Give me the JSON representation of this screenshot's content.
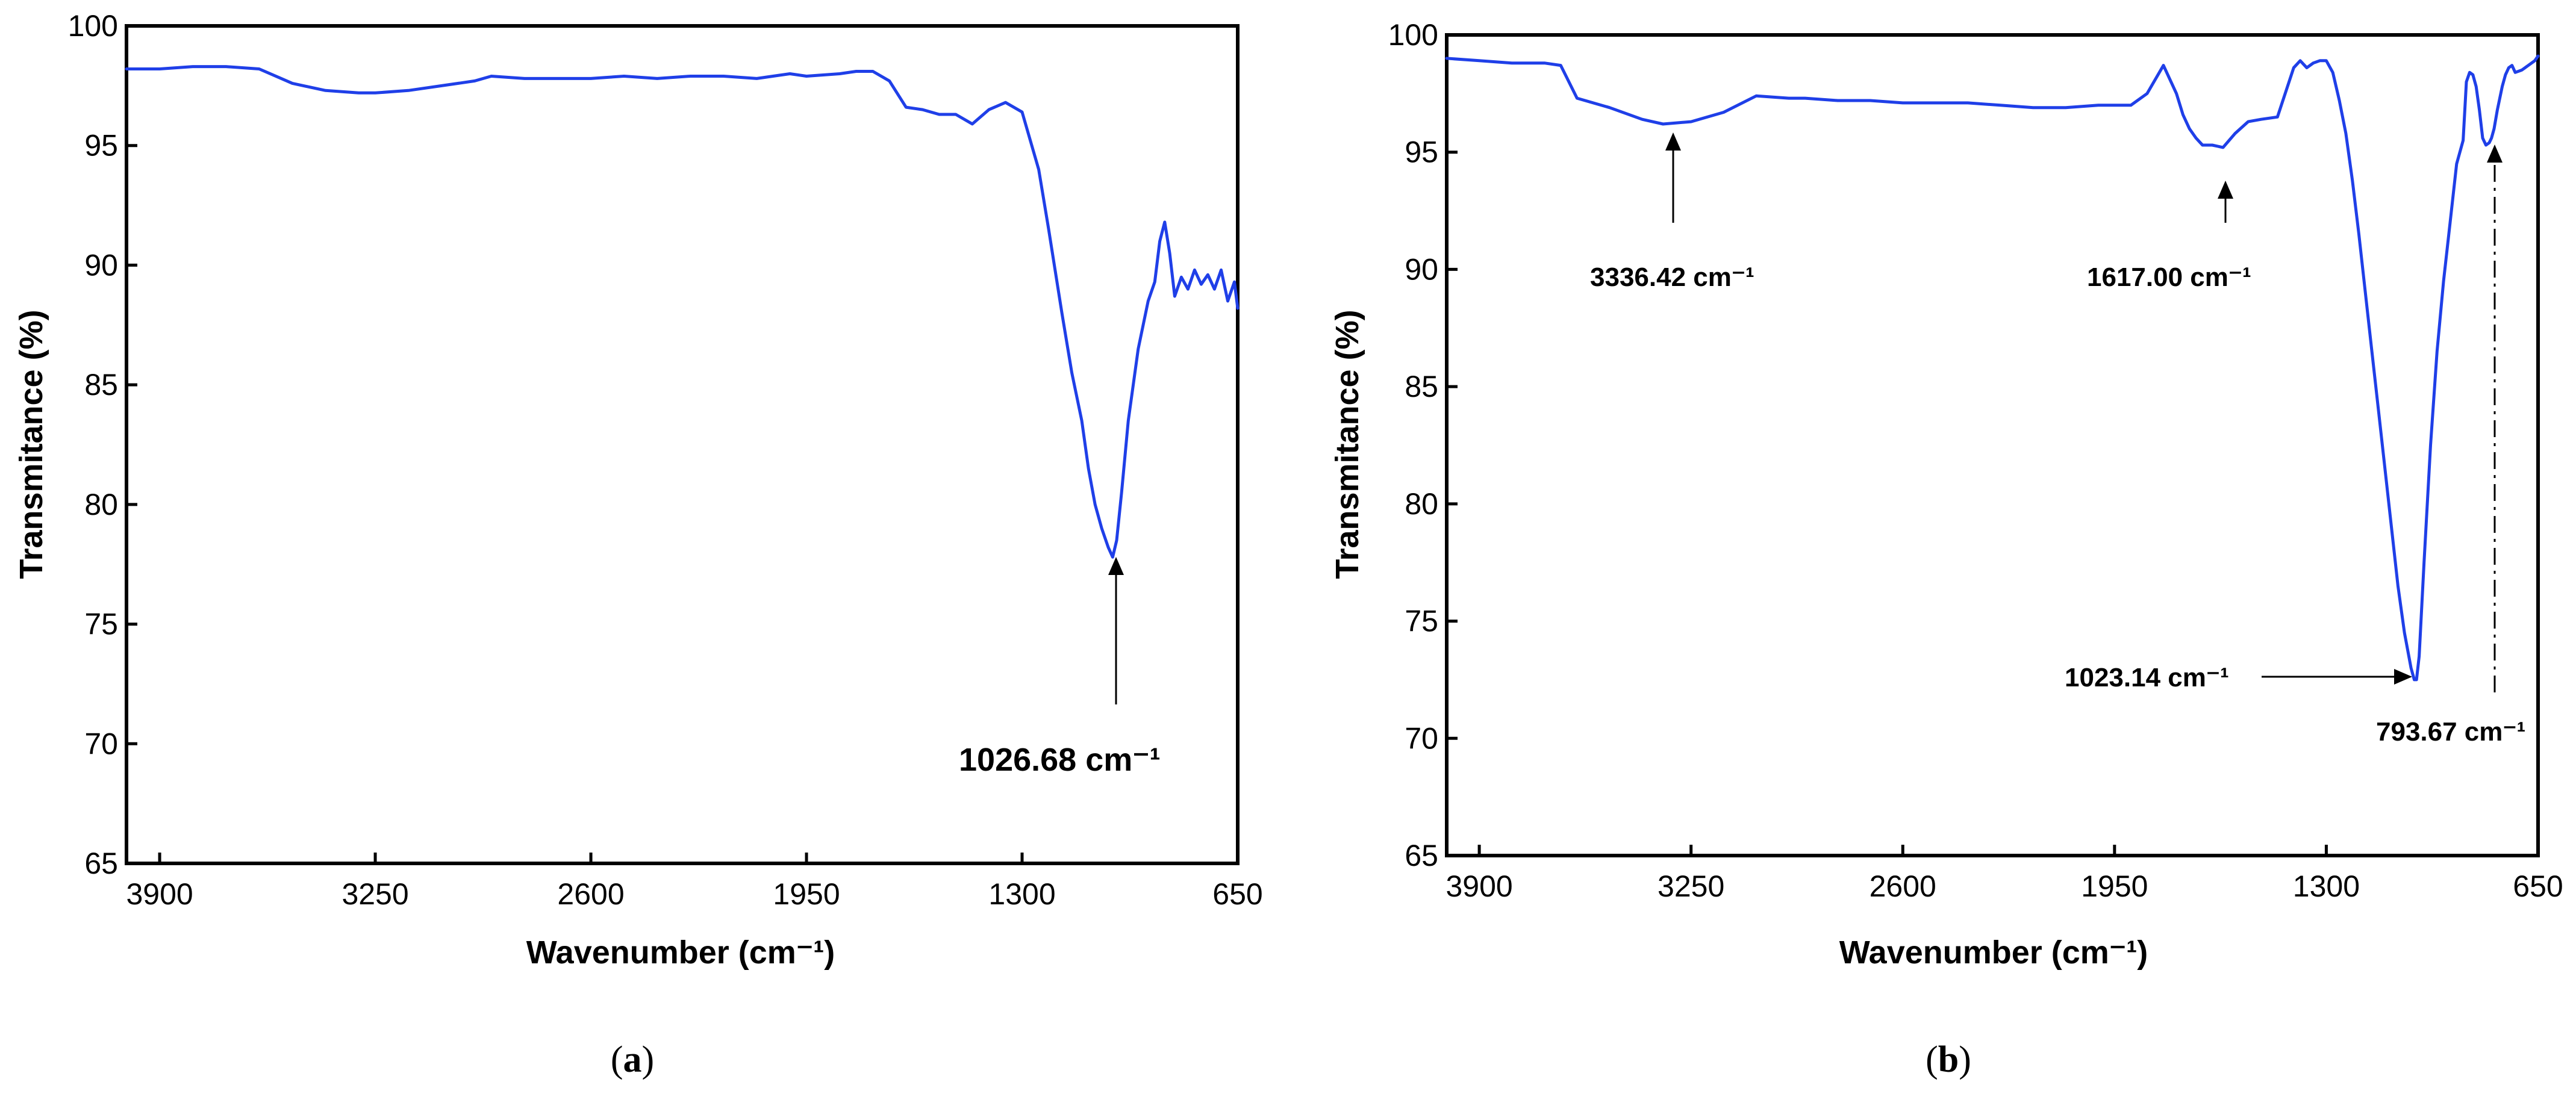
{
  "chart_data": [
    {
      "type": "line",
      "panel_label": "a",
      "xlabel": "Wavenumber (cm⁻¹)",
      "ylabel": "Transmitance (%)",
      "xlim": [
        4000,
        650
      ],
      "ylim": [
        65,
        100
      ],
      "x_ticks": [
        "3900",
        "3250",
        "2600",
        "1950",
        "1300",
        "650"
      ],
      "y_ticks": [
        "65",
        "70",
        "75",
        "80",
        "85",
        "90",
        "95",
        "100"
      ],
      "line_color": "#1f3fe8",
      "series": [
        {
          "x": [
            4000,
            3900,
            3800,
            3700,
            3600,
            3500,
            3400,
            3300,
            3250,
            3150,
            3050,
            2950,
            2900,
            2800,
            2700,
            2600,
            2500,
            2400,
            2300,
            2200,
            2100,
            2000,
            1950,
            1850,
            1800,
            1750,
            1700,
            1650,
            1600,
            1550,
            1500,
            1450,
            1400,
            1350,
            1300,
            1250,
            1220,
            1180,
            1150,
            1120,
            1100,
            1080,
            1060,
            1040,
            1027,
            1015,
            1000,
            980,
            950,
            920,
            900,
            885,
            870,
            855,
            840,
            820,
            800,
            780,
            760,
            740,
            720,
            700,
            680,
            660,
            650
          ],
          "y": [
            98.2,
            98.2,
            98.3,
            98.3,
            98.2,
            97.6,
            97.3,
            97.2,
            97.2,
            97.3,
            97.5,
            97.7,
            97.9,
            97.8,
            97.8,
            97.8,
            97.9,
            97.8,
            97.9,
            97.9,
            97.8,
            98.0,
            97.9,
            98.0,
            98.1,
            98.1,
            97.7,
            96.6,
            96.5,
            96.3,
            96.3,
            95.9,
            96.5,
            96.8,
            96.4,
            94.0,
            91.5,
            88.0,
            85.5,
            83.5,
            81.5,
            80.0,
            79.0,
            78.2,
            77.8,
            78.5,
            80.5,
            83.5,
            86.5,
            88.5,
            89.3,
            91.0,
            91.8,
            90.5,
            88.7,
            89.5,
            89.0,
            89.8,
            89.2,
            89.6,
            89.0,
            89.8,
            88.5,
            89.3,
            88.2
          ]
        }
      ],
      "annotations": [
        {
          "text": "1026.68 cm⁻¹",
          "x": 1026.68,
          "y": 77.8
        }
      ]
    },
    {
      "type": "line",
      "panel_label": "b",
      "xlabel": "Wavenumber (cm⁻¹)",
      "ylabel": "Transmitance (%)",
      "xlim": [
        4000,
        650
      ],
      "ylim": [
        65,
        100
      ],
      "x_ticks": [
        "3900",
        "3250",
        "2600",
        "1950",
        "1300",
        "650"
      ],
      "y_ticks": [
        "65",
        "70",
        "75",
        "80",
        "85",
        "90",
        "95",
        "100"
      ],
      "line_color": "#1f3fe8",
      "series": [
        {
          "x": [
            4000,
            3900,
            3800,
            3700,
            3650,
            3600,
            3500,
            3400,
            3336,
            3250,
            3150,
            3050,
            2950,
            2900,
            2800,
            2700,
            2600,
            2500,
            2400,
            2300,
            2200,
            2100,
            2000,
            1950,
            1900,
            1850,
            1800,
            1760,
            1740,
            1720,
            1700,
            1680,
            1650,
            1617,
            1580,
            1540,
            1500,
            1450,
            1400,
            1380,
            1360,
            1340,
            1320,
            1300,
            1280,
            1260,
            1240,
            1220,
            1200,
            1180,
            1160,
            1140,
            1120,
            1100,
            1080,
            1060,
            1040,
            1030,
            1023,
            1015,
            1000,
            980,
            960,
            940,
            920,
            900,
            880,
            870,
            860,
            850,
            840,
            830,
            820,
            810,
            800,
            793,
            785,
            775,
            760,
            750,
            740,
            730,
            720,
            700,
            680,
            660,
            650
          ],
          "y": [
            99.0,
            98.9,
            98.8,
            98.8,
            98.7,
            97.3,
            96.9,
            96.4,
            96.2,
            96.3,
            96.7,
            97.4,
            97.3,
            97.3,
            97.2,
            97.2,
            97.1,
            97.1,
            97.1,
            97.0,
            96.9,
            96.9,
            97.0,
            97.0,
            97.0,
            97.5,
            98.7,
            97.5,
            96.6,
            96.0,
            95.6,
            95.3,
            95.3,
            95.2,
            95.8,
            96.3,
            96.4,
            96.5,
            98.6,
            98.9,
            98.6,
            98.8,
            98.9,
            98.9,
            98.4,
            97.2,
            95.8,
            93.8,
            91.5,
            89.0,
            86.5,
            84.0,
            81.5,
            79.0,
            76.5,
            74.5,
            73.0,
            72.5,
            72.5,
            73.5,
            77.5,
            82.5,
            86.5,
            89.5,
            92.0,
            94.5,
            95.5,
            98.0,
            98.4,
            98.3,
            97.8,
            96.8,
            95.6,
            95.3,
            95.4,
            95.6,
            96.0,
            96.8,
            97.8,
            98.3,
            98.6,
            98.7,
            98.4,
            98.5,
            98.7,
            98.9,
            99.1
          ]
        }
      ],
      "annotations": [
        {
          "text": "3336.42 cm⁻¹",
          "x": 3336.42,
          "y": 96.2
        },
        {
          "text": "1617.00 cm⁻¹",
          "x": 1617.0,
          "y": 95.2
        },
        {
          "text": "1023.14 cm⁻¹",
          "x": 1023.14,
          "y": 72.5
        },
        {
          "text": "793.67 cm⁻¹",
          "x": 793.67,
          "y": 95.6
        }
      ]
    }
  ],
  "captions": [
    "a",
    "b"
  ]
}
